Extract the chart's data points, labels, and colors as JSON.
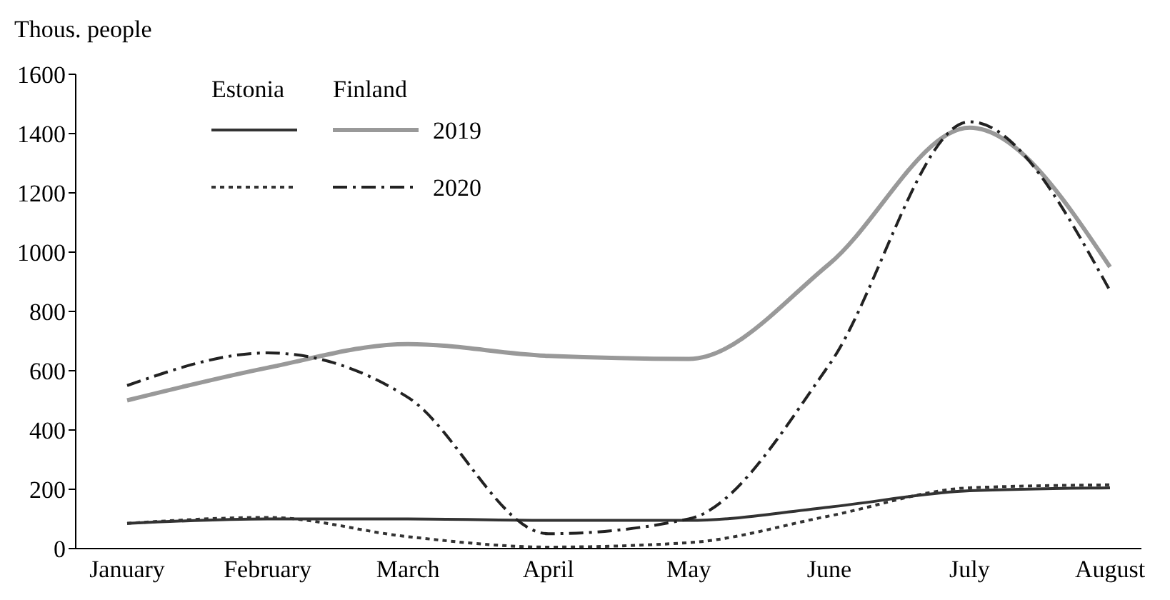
{
  "chart_data": {
    "type": "line",
    "ylabel": "Thous. people",
    "categories": [
      "January",
      "February",
      "March",
      "April",
      "May",
      "June",
      "July",
      "August"
    ],
    "series": [
      {
        "color": "#333333",
        "line_style": "solid",
        "values": [
          85,
          100,
          100,
          95,
          95,
          140,
          195,
          205
        ]
      },
      {
        "color": "#333333",
        "line_style": "dotted",
        "values": [
          85,
          105,
          40,
          5,
          20,
          110,
          205,
          215
        ]
      },
      {
        "name": "2019",
        "color": "#999999",
        "line_style": "solid",
        "values": [
          500,
          610,
          690,
          650,
          640,
          960,
          1420,
          950
        ]
      },
      {
        "name": "2020",
        "color": "#222222",
        "line_style": "dashdot",
        "values": [
          550,
          660,
          510,
          50,
          100,
          620,
          1440,
          870
        ]
      }
    ],
    "annotations": [
      "Estonia",
      "Finland"
    ],
    "ylim": [
      0,
      1600
    ],
    "yticks": [
      0,
      200,
      400,
      600,
      800,
      1000,
      1200,
      1400,
      1600
    ],
    "grid": false,
    "legend": "top left",
    "marker": "none"
  }
}
